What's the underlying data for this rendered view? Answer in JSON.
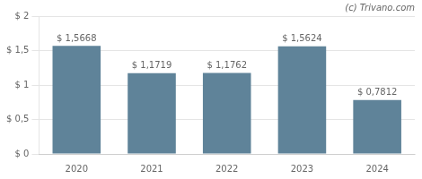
{
  "chart_data": {
    "type": "bar",
    "categories": [
      "2020",
      "2021",
      "2022",
      "2023",
      "2024"
    ],
    "values": [
      1.5668,
      1.1719,
      1.1762,
      1.5624,
      0.7812
    ],
    "value_labels": [
      "$ 1,5668",
      "$ 1,1719",
      "$ 1,1762",
      "$ 1,5624",
      "$ 0,7812"
    ],
    "data_labels": true,
    "color": "#5f8399",
    "ylim": [
      0,
      2.0
    ],
    "yticks": [
      {
        "value": 0,
        "label": "$ 0"
      },
      {
        "value": 0.5,
        "label": "$ 0,5"
      },
      {
        "value": 1.0,
        "label": "$ 1"
      },
      {
        "value": 1.5,
        "label": "$ 1,5"
      },
      {
        "value": 2.0,
        "label": "$ 2"
      }
    ],
    "grid": true,
    "annotations": [
      "(c) Trivano.com"
    ]
  }
}
